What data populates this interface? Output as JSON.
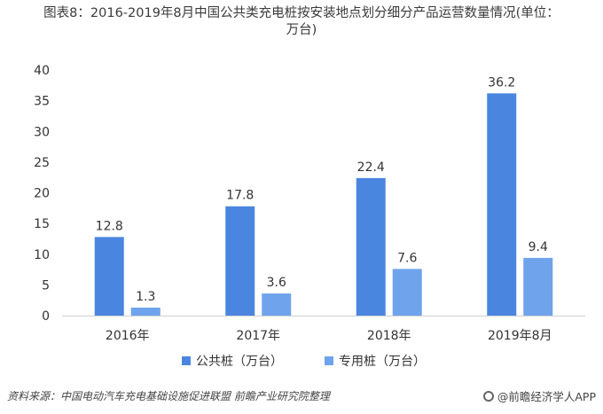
{
  "title_lines": [
    "图表8：2016-2019年8月中国公共类充电桩按安装地点划分细分产品运营数量情况(单位：",
    "万台)"
  ],
  "source": "资料来源：中国电动汽车充电基础设施促进联盟 前瞻产业研究院整理",
  "brand": "@前瞻经济学人APP",
  "colors": {
    "series1": "#4a86e0",
    "series2": "#6fa3ec",
    "axis": "#cfcfcf"
  },
  "chart_data": {
    "type": "bar",
    "categories": [
      "2016年",
      "2017年",
      "2018年",
      "2019年8月"
    ],
    "series": [
      {
        "name": "公共桩（万台）",
        "values": [
          12.8,
          17.8,
          22.4,
          36.2
        ]
      },
      {
        "name": "专用桩（万台）",
        "values": [
          1.3,
          3.6,
          7.6,
          9.4
        ]
      }
    ],
    "ylim": [
      0,
      40
    ],
    "yticks": [
      0,
      5,
      10,
      15,
      20,
      25,
      30,
      35,
      40
    ],
    "grid": false,
    "legend": "bottom"
  }
}
